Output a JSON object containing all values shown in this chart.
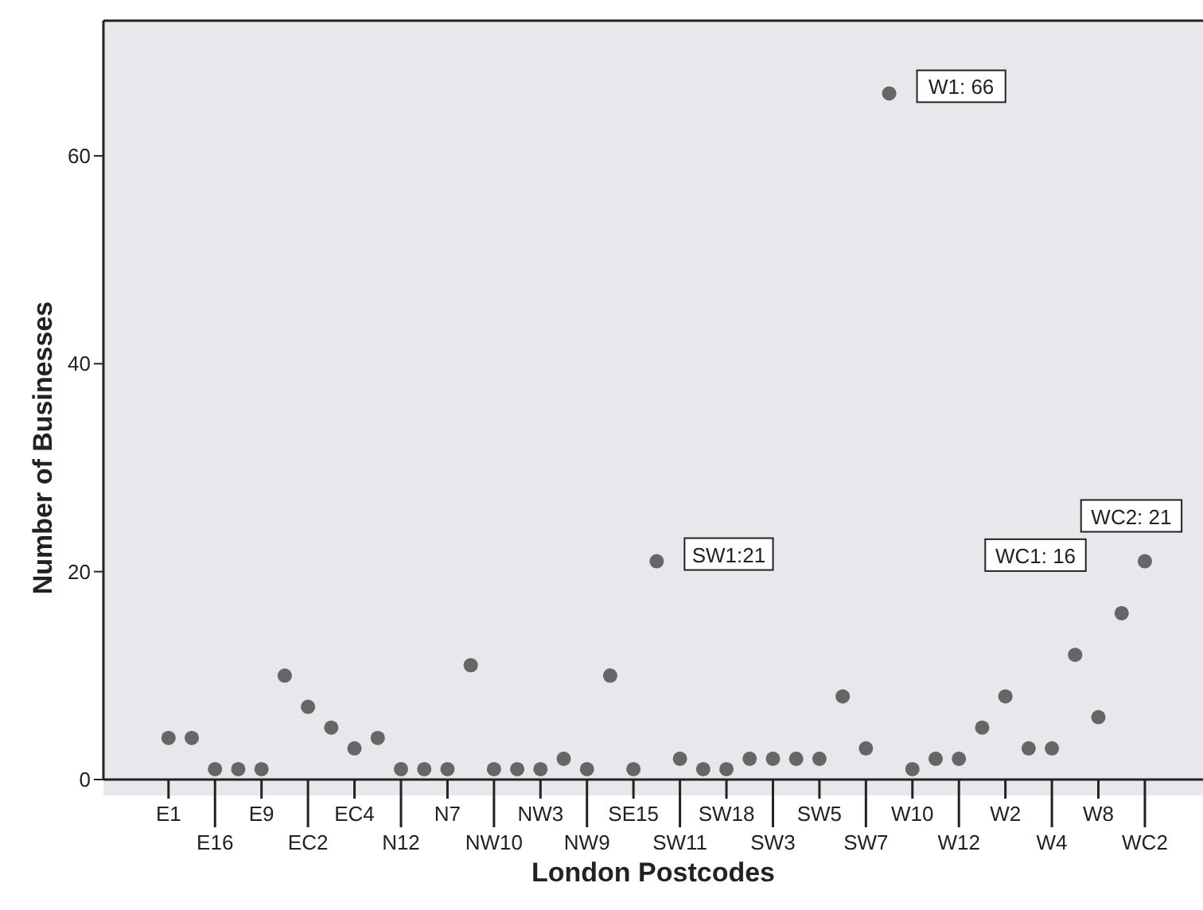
{
  "chart_data": {
    "type": "scatter",
    "xlabel": "London Postcodes",
    "ylabel": "Number of Businesses",
    "categories": [
      "E1",
      null,
      "E16",
      null,
      "E9",
      null,
      "EC2",
      null,
      "EC4",
      null,
      "N12",
      null,
      "N7",
      null,
      "NW10",
      null,
      "NW3",
      null,
      "NW9",
      null,
      "SE15",
      null,
      "SW11",
      null,
      "SW18",
      null,
      "SW3",
      null,
      "SW5",
      null,
      "SW7",
      null,
      "W10",
      null,
      "W12",
      null,
      "W2",
      null,
      "W4",
      null,
      "W8",
      null,
      "WC2"
    ],
    "values": [
      4,
      4,
      1,
      1,
      1,
      10,
      7,
      5,
      3,
      4,
      1,
      1,
      1,
      11,
      1,
      1,
      1,
      2,
      1,
      10,
      1,
      21,
      2,
      1,
      1,
      2,
      2,
      2,
      2,
      8,
      3,
      66,
      1,
      2,
      2,
      5,
      8,
      3,
      3,
      12,
      6,
      16,
      21
    ],
    "value_labels": [
      null,
      null,
      null,
      null,
      null,
      null,
      null,
      null,
      null,
      null,
      null,
      null,
      null,
      null,
      null,
      null,
      null,
      null,
      null,
      null,
      null,
      "SW1:21",
      null,
      null,
      null,
      null,
      null,
      null,
      null,
      null,
      null,
      "W1: 66",
      null,
      null,
      null,
      null,
      null,
      null,
      null,
      null,
      null,
      "WC1: 16",
      "WC2: 21"
    ],
    "color": "#666666",
    "marker": "circle",
    "ylim": [
      0,
      73
    ],
    "yticks": [
      0,
      20,
      40,
      60
    ],
    "legend": false
  }
}
